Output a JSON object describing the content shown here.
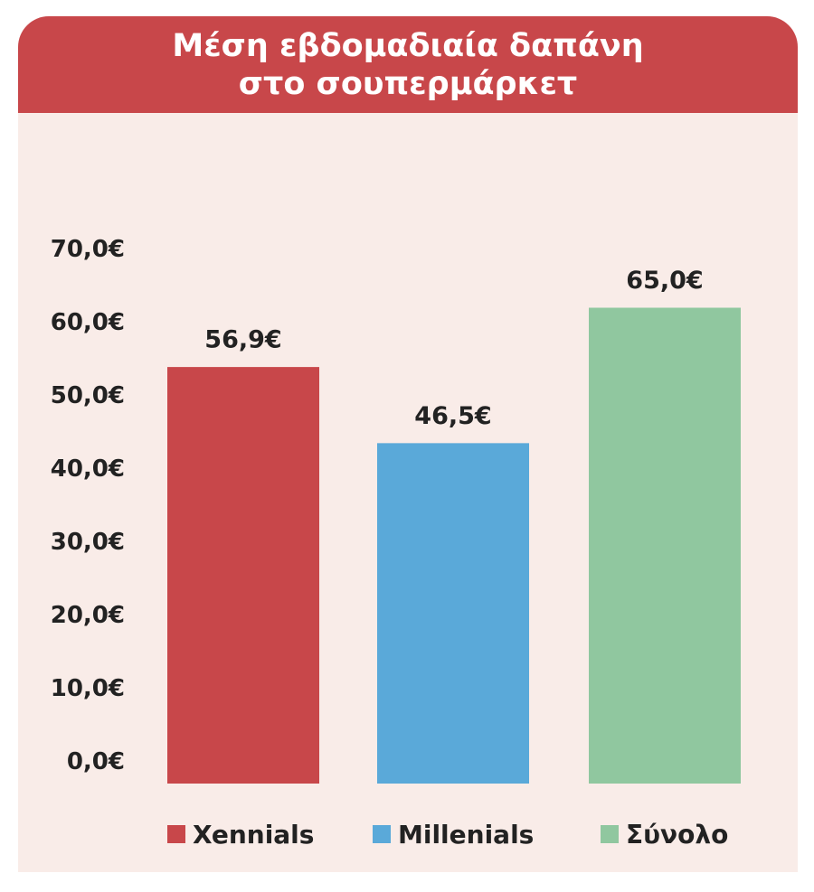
{
  "header": {
    "title_line1": "Μέση εβδομαδιαία δαπάνη",
    "title_line2": "στο σουπερμάρκετ"
  },
  "colors": {
    "header": "#c8474a",
    "background": "#f9ece8",
    "xennials": "#c8474a",
    "millenials": "#5aa9d9",
    "total": "#90c79f"
  },
  "chart_data": {
    "type": "bar",
    "title": "Μέση εβδομαδιαία δαπάνη στο σουπερμάρκετ",
    "categories": [
      "Xennials",
      "Millenials",
      "Σύνολο"
    ],
    "values": [
      56.9,
      46.5,
      65.0
    ],
    "value_labels": [
      "56,9€",
      "46,5€",
      "65,0€"
    ],
    "yticks": [
      0,
      10,
      20,
      30,
      40,
      50,
      60,
      70
    ],
    "ytick_labels": [
      "0,0€",
      "10,0€",
      "20,0€",
      "30,0€",
      "40,0€",
      "50,0€",
      "60,0€",
      "70,0€"
    ],
    "ylim": [
      0,
      70
    ],
    "grid": false,
    "legend_position": "bottom"
  },
  "legend": [
    {
      "label": "Xennials",
      "color": "#c8474a"
    },
    {
      "label": "Millenials",
      "color": "#5aa9d9"
    },
    {
      "label": "Σύνολο",
      "color": "#90c79f"
    }
  ]
}
